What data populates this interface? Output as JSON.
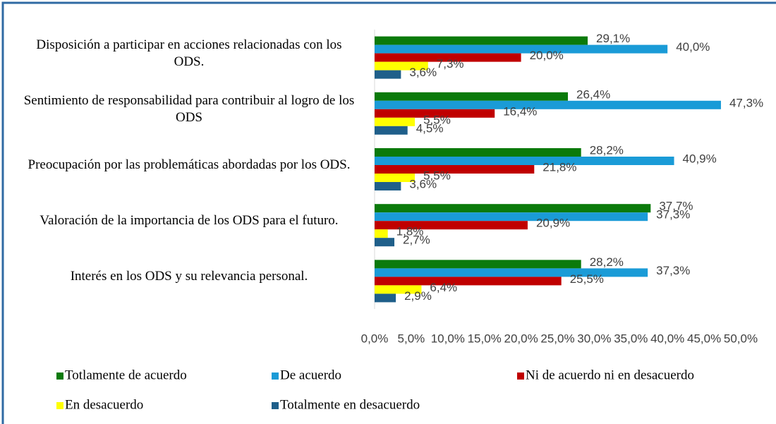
{
  "chart_data": {
    "type": "bar",
    "orientation": "horizontal",
    "categories": [
      "Disposición a participar en acciones relacionadas con los ODS.",
      "Sentimiento de responsabilidad para contribuir al logro de los ODS",
      "Preocupación por las problemáticas abordadas por los ODS.",
      "Valoración de la importancia de los ODS para el futuro.",
      "Interés en los ODS y su relevancia personal."
    ],
    "series": [
      {
        "name": "Totlamente de acuerdo",
        "color": "#0b7a0b",
        "values": [
          29.1,
          26.4,
          28.2,
          37.7,
          28.2
        ],
        "value_labels": [
          "29,1%",
          "26,4%",
          "28,2%",
          "37,7%",
          "28,2%"
        ]
      },
      {
        "name": "De acuerdo",
        "color": "#1a9bd7",
        "values": [
          40.0,
          47.3,
          40.9,
          37.3,
          37.3
        ],
        "value_labels": [
          "40,0%",
          "47,3%",
          "40,9%",
          "37,3%",
          "37,3%"
        ]
      },
      {
        "name": "Ni de acuerdo ni en desacuerdo",
        "color": "#c00000",
        "values": [
          20.0,
          16.4,
          21.8,
          20.9,
          25.5
        ],
        "value_labels": [
          "20,0%",
          "16,4%",
          "21,8%",
          "20,9%",
          "25,5%"
        ]
      },
      {
        "name": "En desacuerdo",
        "color": "#ffff00",
        "values": [
          7.3,
          5.5,
          5.5,
          1.8,
          6.4
        ],
        "value_labels": [
          "7,3%",
          "5,5%",
          "5,5%",
          "1,8%",
          "6,4%"
        ]
      },
      {
        "name": "Totalmente en desacuerdo",
        "color": "#1f5f8a",
        "values": [
          3.6,
          4.5,
          3.6,
          2.7,
          2.9
        ],
        "value_labels": [
          "3,6%",
          "4,5%",
          "3,6%",
          "2,7%",
          "2,9%"
        ]
      }
    ],
    "xlim": [
      0,
      50
    ],
    "xticks": [
      {
        "value": 0,
        "label": "0,0%"
      },
      {
        "value": 5,
        "label": "5,0%"
      },
      {
        "value": 10,
        "label": "10,0%"
      },
      {
        "value": 15,
        "label": "15,0%"
      },
      {
        "value": 20,
        "label": "20,0%"
      },
      {
        "value": 25,
        "label": "25,0%"
      },
      {
        "value": 30,
        "label": "30,0%"
      },
      {
        "value": 35,
        "label": "35,0%"
      },
      {
        "value": 40,
        "label": "40,0%"
      },
      {
        "value": 45,
        "label": "45,0%"
      },
      {
        "value": 50,
        "label": "50,0%"
      }
    ],
    "grid": false,
    "legend": "bottom"
  }
}
